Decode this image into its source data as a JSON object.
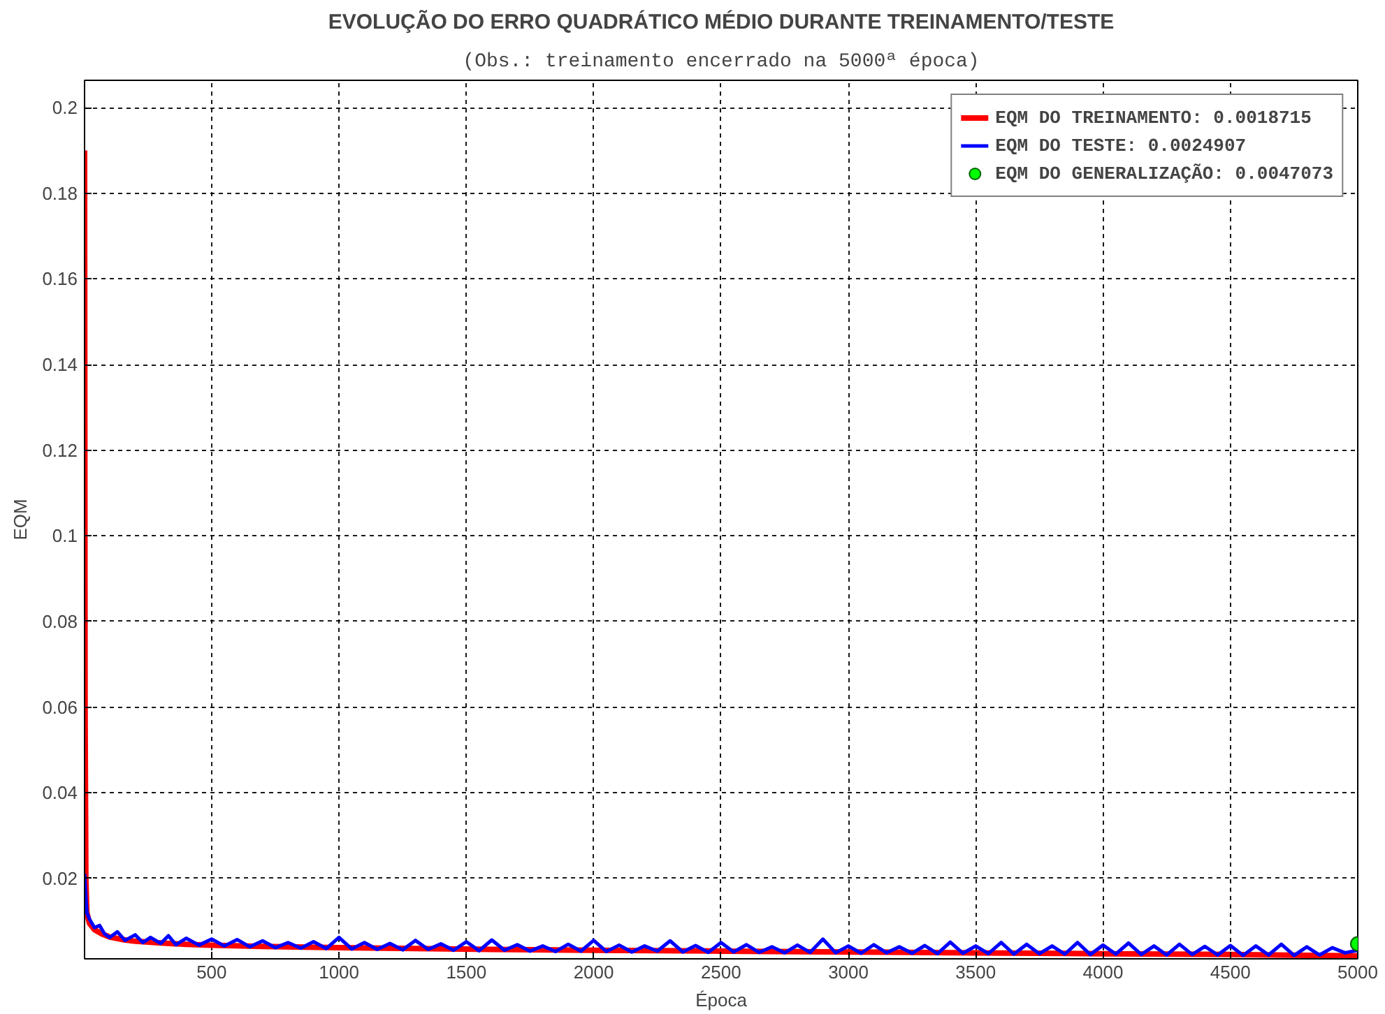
{
  "chart_data": {
    "type": "line",
    "title": "EVOLUÇÃO DO ERRO QUADRÁTICO MÉDIO DURANTE TREINAMENTO/TESTE",
    "subtitle": "(Obs.: treinamento encerrado na 5000ª época)",
    "xlabel": "Época",
    "ylabel": "EQM",
    "xlim": [
      1,
      5000
    ],
    "ylim": [
      0.0012,
      0.2064
    ],
    "xticks": [
      500,
      1000,
      1500,
      2000,
      2500,
      3000,
      3500,
      4000,
      4500,
      5000
    ],
    "yticks": [
      0.02,
      0.04,
      0.06,
      0.08,
      0.1,
      0.12,
      0.14,
      0.16,
      0.18,
      0.2
    ],
    "grid": true,
    "legend": "top right",
    "line_style": "solid",
    "series": [
      {
        "name": "EQM DO TREINAMENTO: 0.0018715",
        "color": "#ff0000",
        "x": [
          1,
          3,
          6,
          10,
          20,
          40,
          70,
          100,
          150,
          200,
          300,
          400,
          500,
          700,
          1000,
          1300,
          1600,
          2000,
          2500,
          3000,
          3500,
          4000,
          4500,
          4800,
          5000
        ],
        "values": [
          0.19,
          0.06,
          0.02,
          0.012,
          0.0095,
          0.008,
          0.007,
          0.0063,
          0.0057,
          0.0053,
          0.0049,
          0.0046,
          0.0044,
          0.0041,
          0.0038,
          0.0036,
          0.0034,
          0.0032,
          0.003,
          0.0028,
          0.0026,
          0.0024,
          0.0022,
          0.002,
          0.0019
        ]
      },
      {
        "name": "EQM DO TESTE: 0.0024907",
        "color": "#0000ff",
        "x": [
          1,
          10,
          20,
          40,
          60,
          80,
          100,
          130,
          160,
          200,
          230,
          260,
          300,
          330,
          360,
          400,
          450,
          500,
          550,
          600,
          650,
          700,
          750,
          800,
          850,
          900,
          950,
          1000,
          1050,
          1100,
          1150,
          1200,
          1250,
          1300,
          1350,
          1400,
          1450,
          1500,
          1550,
          1600,
          1650,
          1700,
          1750,
          1800,
          1850,
          1900,
          1950,
          2000,
          2050,
          2100,
          2150,
          2200,
          2250,
          2300,
          2350,
          2400,
          2450,
          2500,
          2550,
          2600,
          2650,
          2700,
          2750,
          2800,
          2850,
          2900,
          2950,
          3000,
          3050,
          3100,
          3150,
          3200,
          3250,
          3300,
          3350,
          3400,
          3450,
          3500,
          3550,
          3600,
          3650,
          3700,
          3750,
          3800,
          3850,
          3900,
          3950,
          4000,
          4050,
          4100,
          4150,
          4200,
          4250,
          4300,
          4350,
          4400,
          4450,
          4500,
          4550,
          4600,
          4650,
          4700,
          4750,
          4800,
          4850,
          4900,
          4950,
          5000
        ],
        "values": [
          0.021,
          0.012,
          0.0105,
          0.0085,
          0.009,
          0.007,
          0.0062,
          0.0075,
          0.0055,
          0.0068,
          0.005,
          0.0062,
          0.0048,
          0.0066,
          0.0045,
          0.006,
          0.0044,
          0.0058,
          0.0042,
          0.0057,
          0.004,
          0.0054,
          0.0038,
          0.005,
          0.0037,
          0.0052,
          0.0036,
          0.0062,
          0.0035,
          0.005,
          0.0034,
          0.0048,
          0.0033,
          0.0055,
          0.0034,
          0.0047,
          0.0032,
          0.0052,
          0.0031,
          0.0056,
          0.0032,
          0.0045,
          0.003,
          0.0042,
          0.0029,
          0.0046,
          0.003,
          0.0055,
          0.0029,
          0.0044,
          0.0028,
          0.0042,
          0.003,
          0.0054,
          0.0028,
          0.0043,
          0.0027,
          0.005,
          0.0028,
          0.0045,
          0.0027,
          0.004,
          0.0026,
          0.0044,
          0.0027,
          0.0058,
          0.0026,
          0.0042,
          0.0025,
          0.0045,
          0.0026,
          0.004,
          0.0025,
          0.0043,
          0.0024,
          0.0051,
          0.0025,
          0.0042,
          0.0024,
          0.005,
          0.0023,
          0.0046,
          0.0024,
          0.0042,
          0.0023,
          0.005,
          0.0022,
          0.0044,
          0.0023,
          0.0049,
          0.0022,
          0.0042,
          0.0021,
          0.0046,
          0.0022,
          0.0041,
          0.0021,
          0.0043,
          0.002,
          0.0042,
          0.0021,
          0.0046,
          0.002,
          0.004,
          0.0021,
          0.0038,
          0.0026,
          0.0032
        ]
      },
      {
        "name": "EQM DO GENERALIZAÇÃO: 0.0047073",
        "color": "#00ff00",
        "type": "scatter",
        "marker": "circle",
        "x": [
          5000
        ],
        "values": [
          0.0047073
        ]
      }
    ]
  }
}
